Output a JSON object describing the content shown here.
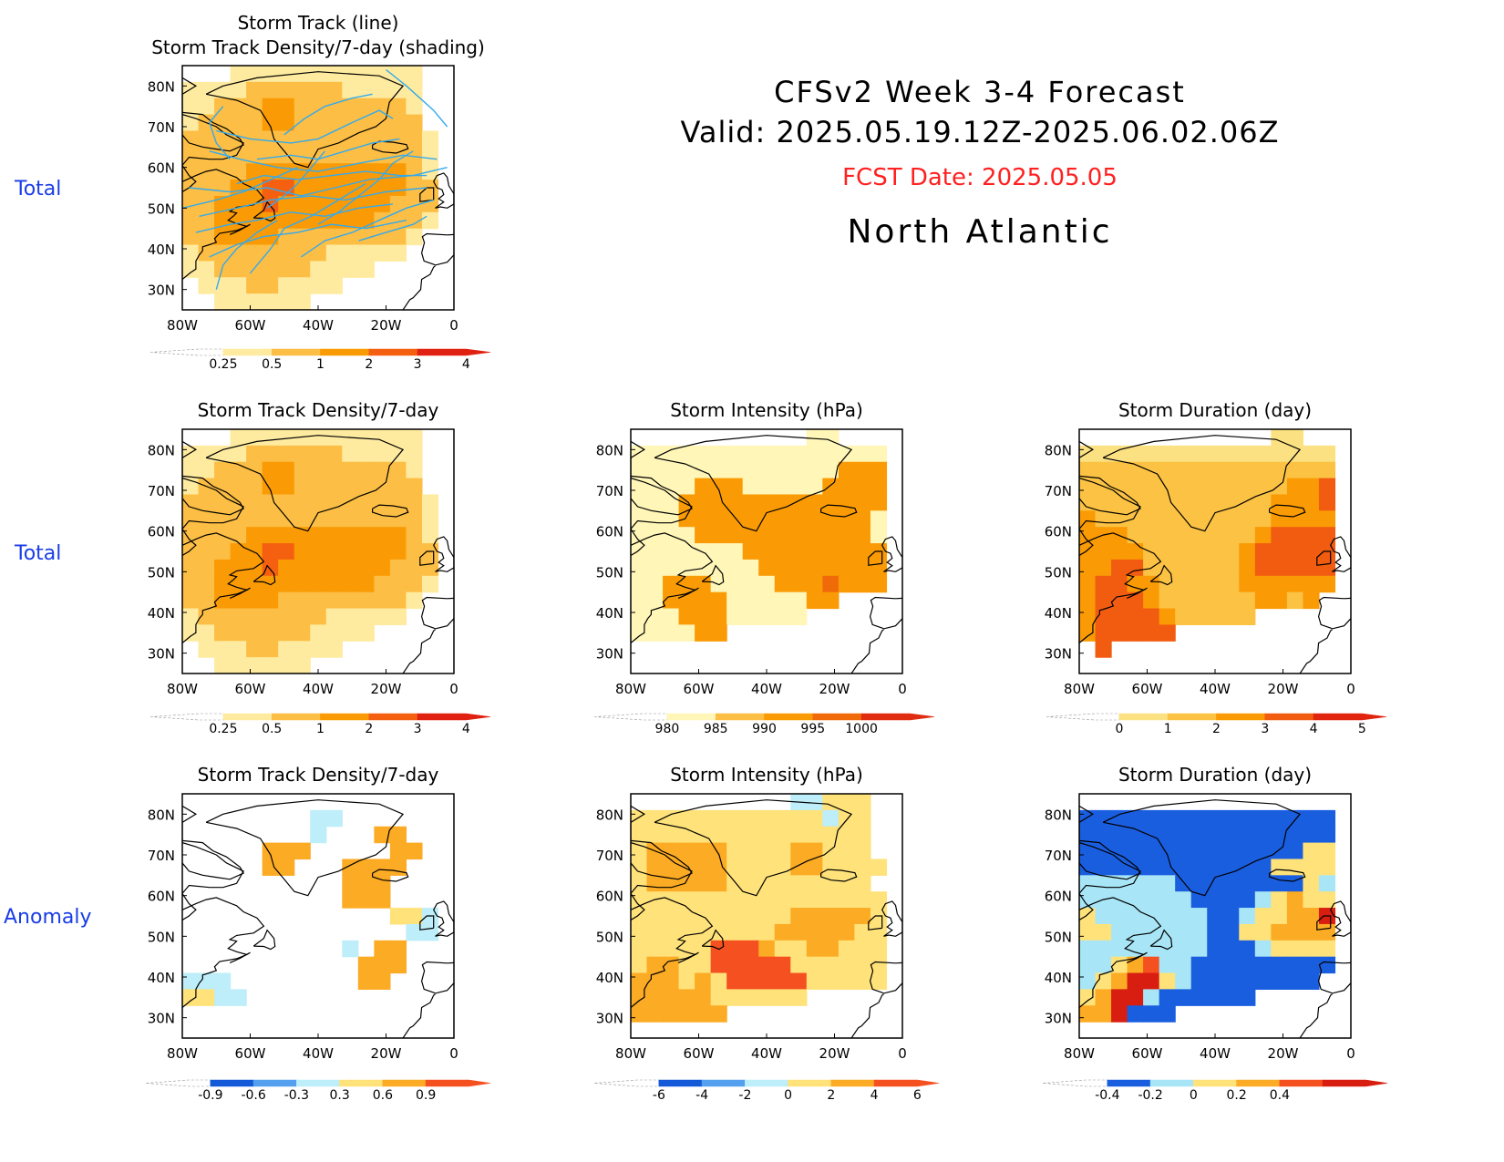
{
  "header": {
    "line1": "CFSv2 Week 3-4 Forecast",
    "line2": "Valid: 2025.05.19.12Z-2025.06.02.06Z",
    "fcst": "FCST Date: 2025.05.05",
    "region": "North Atlantic"
  },
  "row_labels": [
    "Total",
    "Total",
    "Anomaly"
  ],
  "colors": {
    "row_label": "#1a3de6",
    "fcst": "#ff2020",
    "track_line": "#33aaee",
    "land_line": "#000000"
  },
  "axis": {
    "lon_ticks": [
      "80W",
      "60W",
      "40W",
      "20W",
      "0"
    ],
    "lat_ticks": [
      "80N",
      "70N",
      "60N",
      "50N",
      "40N",
      "30N"
    ]
  },
  "panels": [
    {
      "id": "track-total",
      "title1": "Storm Track (line)",
      "title2": "Storm Track Density/7-day (shading)",
      "scale": "dens",
      "grid": [
        "00011111111111100",
        "11112222221111100",
        "11222332222222100",
        "12222332222222200",
        "22222222222222210",
        "22222222222222210",
        "22223333333333210",
        "22233443333333220",
        "22333433333332220",
        "22333333333322210",
        "22333322222222100",
        "12222222211111000",
        "11222222111100000",
        "01112211110000000",
        "00111111000000000"
      ]
    },
    {
      "id": "density-total",
      "title1": "Storm Track Density/7-day",
      "scale": "dens",
      "grid": [
        "00011111111111100",
        "11112222221111100",
        "11222332222222100",
        "12222332222222200",
        "22222222222222210",
        "22222222222222210",
        "22223333333333210",
        "22233443333333220",
        "22333433333332220",
        "22333333333322210",
        "22333322222222100",
        "12222222211111000",
        "11222222111100000",
        "01112211110000000",
        "00111111000000000"
      ]
    },
    {
      "id": "intensity-total",
      "title1": "Storm Intensity (hPa)",
      "scale": "inten",
      "grid": [
        "00000000000110000",
        "11111111111111110",
        "11111111111113330",
        "11113331111133330",
        "11133333333333330",
        "11133333333333310",
        "11113333333333310",
        "11111113333333330",
        "11111111333333330",
        "11333111133343330",
        "11333311111330000",
        "11133311111000000",
        "11113300000000000",
        "00000000000000000",
        "00000000000000000"
      ]
    },
    {
      "id": "duration-total",
      "title1": "Storm Duration (day)",
      "scale": "dur",
      "grid": [
        "00000000000011000",
        "11111111111111110",
        "22222222222222220",
        "22222222222223340",
        "22222222222233340",
        "32222222222233330",
        "33322222222344440",
        "33332222223444440",
        "33442222223444440",
        "34433222223333330",
        "34443222222332300",
        "34444322222000000",
        "34444400000000000",
        "04000000000000000",
        "00000000000000000"
      ]
    },
    {
      "id": "density-anom",
      "title1": "Storm Track Density/7-day",
      "scale": "danom",
      "grid": [
        "00000000000000000",
        "00000000330000000",
        "00000000300055000",
        "00000555000005500",
        "00000550005555000",
        "00000000005550000",
        "00000000005550000",
        "00000000000004430",
        "00000000000000330",
        "00000000003055000",
        "00000000000555000",
        "33300000000550000",
        "44330000000000000",
        "00000000000000000",
        "00000000000000000"
      ]
    },
    {
      "id": "intensity-anom",
      "title1": "Storm Intensity (hPa)",
      "scale": "ianom",
      "grid": [
        "00000000003344400",
        "44444444444434400",
        "44444444444444400",
        "45555544445544400",
        "45555544445544440",
        "45555544444444400",
        "44444444444444440",
        "44444444445555540",
        "44444444455555440",
        "44444666544554440",
        "45544666664444440",
        "55545466666444440",
        "55555444444000000",
        "55555500000000000",
        "00000000000000000"
      ]
    },
    {
      "id": "duration-anom",
      "title1": "Storm Duration (day)",
      "scale": "uanom",
      "grid": [
        "00000000000000000",
        "11111111111111110",
        "11111111111111110",
        "11111111111111330",
        "11111111111133330",
        "22222211111111320",
        "22222221111234330",
        "32222222112334460",
        "33222222113344440",
        "22222222111233330",
        "22345221111111110",
        "23466321111111100",
        "34662111111000000",
        "44611100000000000",
        "00000000000000000"
      ]
    }
  ],
  "scales": {
    "dens": {
      "colors": [
        "#ffffff",
        "#ffeba0",
        "#fcbe44",
        "#fa9b05",
        "#f56010",
        "#e02010"
      ],
      "labels": [
        "0.25",
        "0.5",
        "1",
        "2",
        "3",
        "4"
      ]
    },
    "inten": {
      "colors": [
        "#ffffff",
        "#fff6b8",
        "#fcbe44",
        "#fa9b05",
        "#f06a0a",
        "#e02d12"
      ],
      "labels": [
        "980",
        "985",
        "990",
        "995",
        "1000"
      ]
    },
    "dur": {
      "colors": [
        "#ffffff",
        "#fce182",
        "#fcc244",
        "#fa9b05",
        "#f25c10",
        "#e0240e"
      ],
      "labels": [
        "0",
        "1",
        "2",
        "3",
        "4",
        "5"
      ]
    },
    "danom": {
      "colors": [
        "#ffffff",
        "#1459d8",
        "#55a0ee",
        "#bdeef9",
        "#ffe27a",
        "#fcab24",
        "#f55020"
      ],
      "labels": [
        "-0.9",
        "-0.6",
        "-0.3",
        "0.3",
        "0.6",
        "0.9"
      ]
    },
    "ianom": {
      "colors": [
        "#ffffff",
        "#1459d8",
        "#55a0ee",
        "#bdeef9",
        "#ffe27a",
        "#fcab24",
        "#f55020"
      ],
      "labels": [
        "-6",
        "-4",
        "-2",
        "0",
        "2",
        "4",
        "6"
      ]
    },
    "uanom": {
      "colors": [
        "#ffffff",
        "#1a5ee0",
        "#a8e6f7",
        "#ffe27a",
        "#fcab24",
        "#f55020",
        "#d81e10"
      ],
      "labels": [
        "-0.4",
        "-0.2",
        "0",
        "0.2",
        "0.4"
      ]
    }
  }
}
